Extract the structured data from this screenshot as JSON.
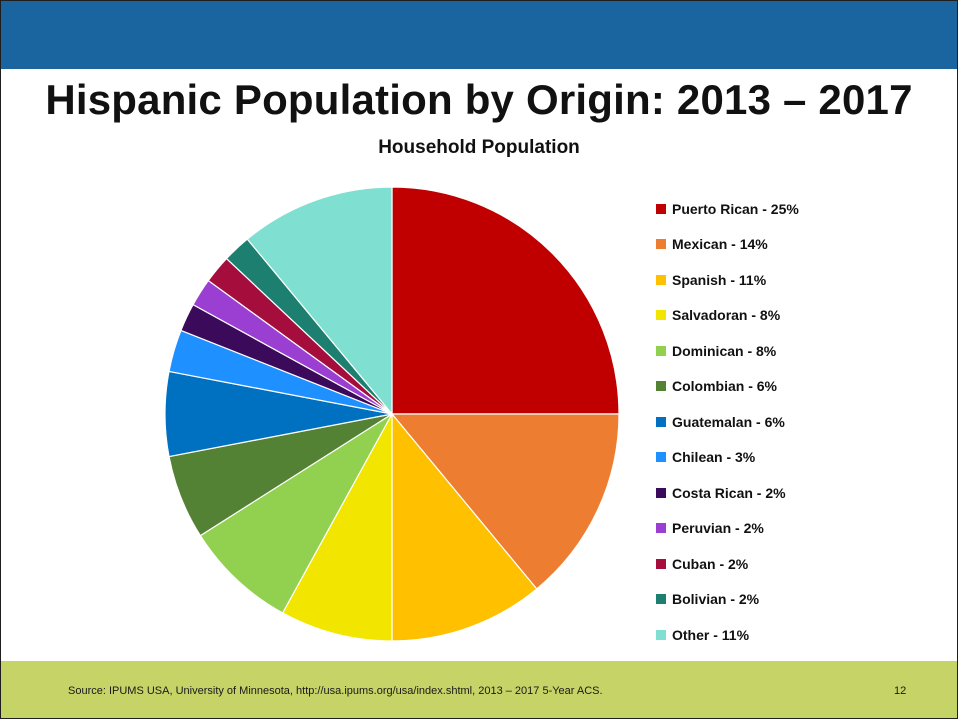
{
  "slide": {
    "title": "Hispanic Population by Origin: 2013 – 2017",
    "footer_source": "Source: IPUMS USA, University of Minnesota, http://usa.ipums.org/usa/index.shtml, 2013 – 2017 5-Year ACS.",
    "page_number": "12",
    "colors": {
      "header": "#1a64a0",
      "footer": "#c6d366"
    }
  },
  "chart_data": {
    "type": "pie",
    "title": "Household Population",
    "legend_position": "right",
    "categories": [
      "Puerto Rican",
      "Mexican",
      "Spanish",
      "Salvadoran",
      "Dominican",
      "Colombian",
      "Guatemalan",
      "Chilean",
      "Costa Rican",
      "Peruvian",
      "Cuban",
      "Bolivian",
      "Other"
    ],
    "values": [
      25,
      14,
      11,
      8,
      8,
      6,
      6,
      3,
      2,
      2,
      2,
      2,
      11
    ],
    "legend_labels": [
      "Puerto Rican - 25%",
      "Mexican - 14%",
      "Spanish - 11%",
      "Salvadoran - 8%",
      "Dominican - 8%",
      "Colombian - 6%",
      "Guatemalan - 6%",
      "Chilean - 3%",
      "Costa Rican - 2%",
      "Peruvian - 2%",
      "Cuban - 2%",
      "Bolivian - 2%",
      "Other - 11%"
    ],
    "colors": [
      "#c00000",
      "#ed7d31",
      "#ffc000",
      "#f2e600",
      "#92d050",
      "#548235",
      "#0070c0",
      "#1e90ff",
      "#3c0a5a",
      "#9b3fd3",
      "#a50e3c",
      "#1d7f6f",
      "#7fe0d2"
    ]
  }
}
